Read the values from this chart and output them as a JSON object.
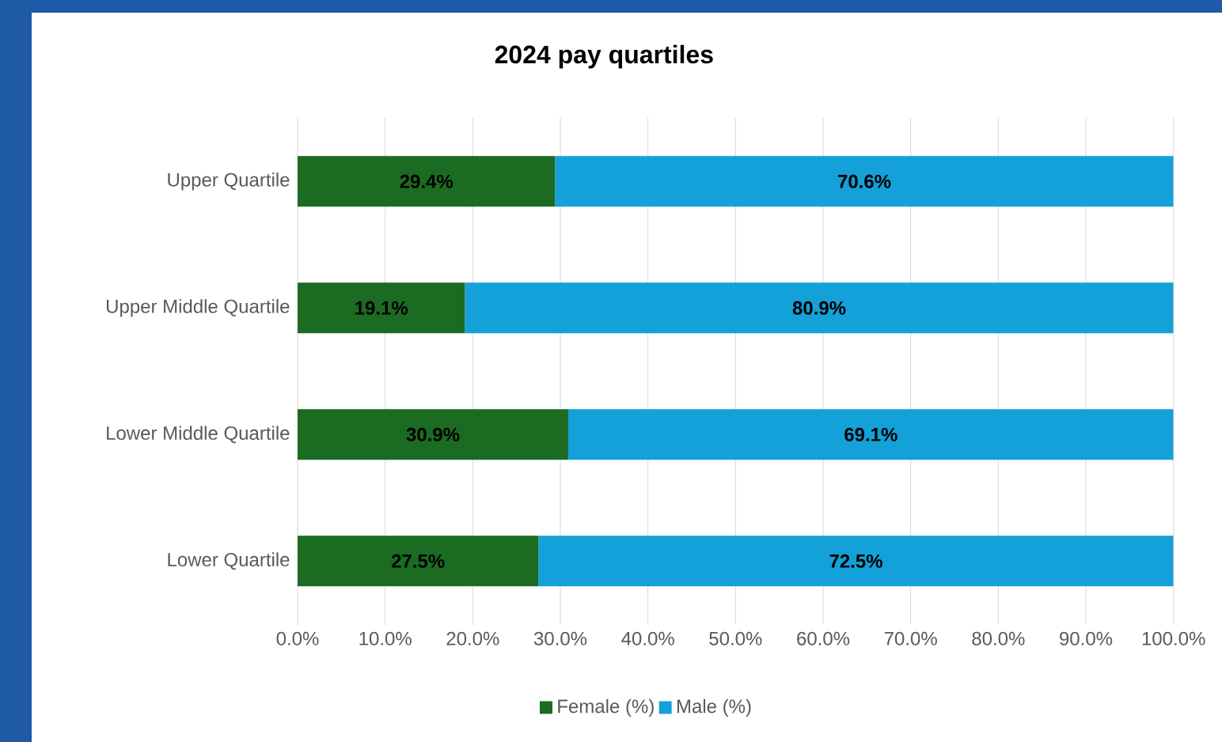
{
  "chart_data": {
    "type": "bar",
    "title": "2024 pay quartiles",
    "orientation": "horizontal",
    "stacked": true,
    "categories": [
      "Upper Quartile",
      "Upper Middle Quartile",
      "Lower Middle Quartile",
      "Lower Quartile"
    ],
    "series": [
      {
        "name": "Female (%)",
        "color": "#1b6b22",
        "values": [
          29.4,
          19.1,
          30.9,
          27.5
        ],
        "value_labels": [
          "29.4%",
          "19.1%",
          "30.9%",
          "27.5%"
        ]
      },
      {
        "name": "Male (%)",
        "color": "#14a0d8",
        "values": [
          70.6,
          80.9,
          69.1,
          72.5
        ],
        "value_labels": [
          "70.6%",
          "80.9%",
          "69.1%",
          "72.5%"
        ]
      }
    ],
    "xlim": [
      0,
      100
    ],
    "xticks": [
      {
        "value": 0,
        "label": "0.0%"
      },
      {
        "value": 10,
        "label": "10.0%"
      },
      {
        "value": 20,
        "label": "20.0%"
      },
      {
        "value": 30,
        "label": "30.0%"
      },
      {
        "value": 40,
        "label": "40.0%"
      },
      {
        "value": 50,
        "label": "50.0%"
      },
      {
        "value": 60,
        "label": "60.0%"
      },
      {
        "value": 70,
        "label": "70.0%"
      },
      {
        "value": 80,
        "label": "80.0%"
      },
      {
        "value": 90,
        "label": "90.0%"
      },
      {
        "value": 100,
        "label": "100.0%"
      }
    ],
    "grid": "x",
    "legend": "bottom"
  }
}
